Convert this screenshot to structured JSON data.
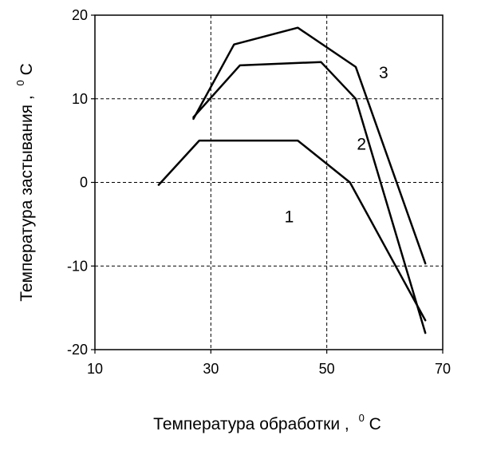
{
  "chart_data": {
    "type": "line",
    "xlabel": "Температура  обработки  ,",
    "xlabel_unit_sup": "0",
    "xlabel_unit": "C",
    "ylabel": "Температура  застывания  ,",
    "ylabel_unit_sup": "0",
    "ylabel_unit": "C",
    "xlim": [
      10,
      70
    ],
    "ylim": [
      -20,
      20
    ],
    "xticks": [
      10,
      30,
      50,
      70
    ],
    "yticks": [
      -20,
      -10,
      0,
      10,
      20
    ],
    "xtick_labels": [
      "10",
      "30",
      "50",
      "70"
    ],
    "ytick_labels": [
      "-20",
      "-10",
      "0",
      "10",
      "20"
    ],
    "grid": true,
    "series": [
      {
        "name": "1",
        "color": "#000000",
        "points": [
          [
            21,
            -0.3
          ],
          [
            28,
            5
          ],
          [
            45,
            5
          ],
          [
            54,
            0
          ],
          [
            67,
            -16.5
          ]
        ],
        "label_at": [
          43.5,
          -4
        ]
      },
      {
        "name": "2",
        "color": "#000000",
        "points": [
          [
            27,
            7.8
          ],
          [
            35,
            14
          ],
          [
            49,
            14.4
          ],
          [
            55,
            10
          ],
          [
            67,
            -18
          ]
        ],
        "label_at": [
          56,
          4.7
        ]
      },
      {
        "name": "3",
        "color": "#000000",
        "points": [
          [
            27,
            7.6
          ],
          [
            34,
            16.5
          ],
          [
            45,
            18.5
          ],
          [
            55,
            13.8
          ],
          [
            67,
            -9.7
          ]
        ],
        "label_at": [
          59.8,
          13.2
        ]
      }
    ]
  }
}
